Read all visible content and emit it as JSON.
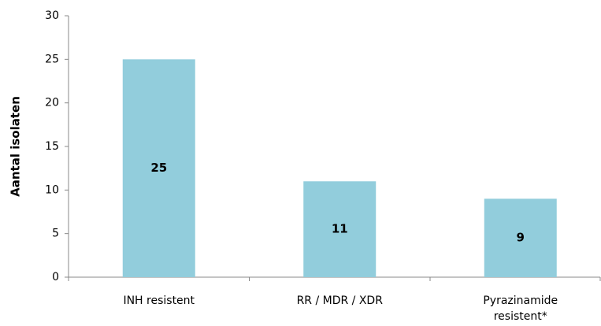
{
  "chart_data": {
    "type": "bar",
    "y_label": "Aantal isolaten",
    "categories": [
      "INH resistent",
      "RR / MDR / XDR",
      "Pyrazinamide\nresistent*"
    ],
    "values": [
      25,
      11,
      9
    ],
    "color": "#92cddc",
    "ylim": [
      0,
      30
    ],
    "yticks": [
      0,
      5,
      10,
      15,
      20,
      25,
      30
    ],
    "grid": false
  }
}
